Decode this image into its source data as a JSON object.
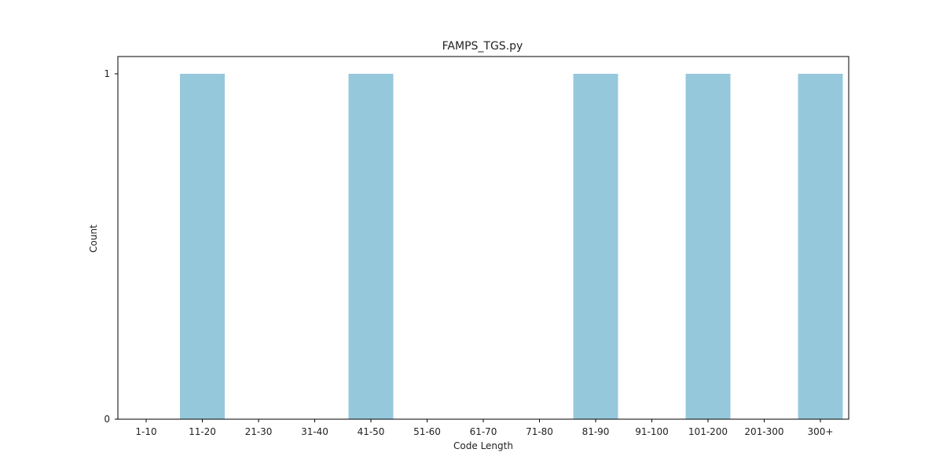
{
  "chart_data": {
    "type": "bar",
    "title": "FAMPS_TGS.py",
    "xlabel": "Code Length",
    "ylabel": "Count",
    "categories": [
      "1-10",
      "11-20",
      "21-30",
      "31-40",
      "41-50",
      "51-60",
      "61-70",
      "71-80",
      "81-90",
      "91-100",
      "101-200",
      "201-300",
      "300+"
    ],
    "values": [
      0,
      1,
      0,
      0,
      1,
      0,
      0,
      0,
      1,
      0,
      1,
      0,
      1
    ],
    "ylim": [
      0,
      1.05
    ],
    "yticks": [
      0,
      1
    ],
    "grid": false,
    "legend": "none",
    "colors": {
      "bar": "#96c8dc",
      "axis": "#000000",
      "text": "#222222"
    }
  }
}
